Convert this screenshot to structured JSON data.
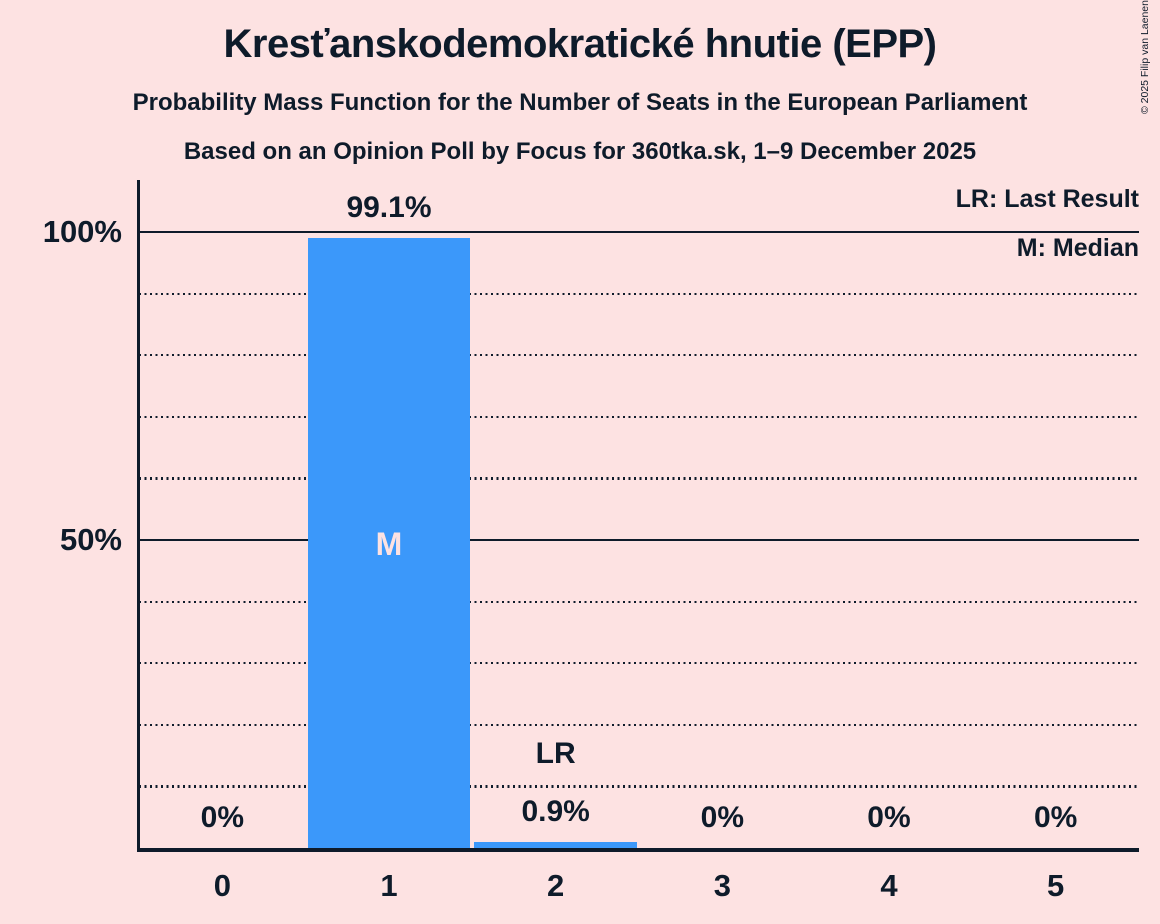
{
  "header": {
    "title": "Kresťanskodemokratické hnutie (EPP)",
    "subtitle": "Probability Mass Function for the Number of Seats in the European Parliament",
    "source_line": "Based on an Opinion Poll by Focus for 360tka.sk, 1–9 December 2025"
  },
  "copyright": "© 2025 Filip van Laenen",
  "legend": {
    "lr": "LR: Last Result",
    "m": "M: Median"
  },
  "colors": {
    "background": "#fde2e2",
    "bar": "#3b98fa",
    "text": "#0e1b2a",
    "median_marker_text": "#fde2e2"
  },
  "chart_data": {
    "type": "bar",
    "title": "Kresťanskodemokratické hnutie (EPP)",
    "subtitle": "Probability Mass Function for the Number of Seats in the European Parliament",
    "note": "Based on an Opinion Poll by Focus for 360tka.sk, 1–9 December 2025",
    "categories": [
      "0",
      "1",
      "2",
      "3",
      "4",
      "5"
    ],
    "values": [
      0,
      99.1,
      0.9,
      0,
      0,
      0
    ],
    "bar_labels": [
      "0%",
      "99.1%",
      "0.9%",
      "0%",
      "0%",
      "0%"
    ],
    "ylim": [
      0,
      100
    ],
    "yticks": [
      {
        "pct": 100,
        "label": "100%"
      },
      {
        "pct": 50,
        "label": "50%"
      }
    ],
    "gridlines": {
      "solid_pct": [
        50,
        100
      ],
      "dotted_pct": [
        10,
        20,
        30,
        40,
        50,
        60,
        70,
        80,
        90,
        100
      ]
    },
    "annotations": [
      {
        "type": "median",
        "category": "1",
        "marker": "M"
      },
      {
        "type": "last_result",
        "category": "2",
        "marker": "LR"
      }
    ],
    "legend_entries": [
      "LR: Last Result",
      "M: Median"
    ],
    "legend_position": "top-right",
    "grid": "dotted horizontal lines every 10%"
  }
}
